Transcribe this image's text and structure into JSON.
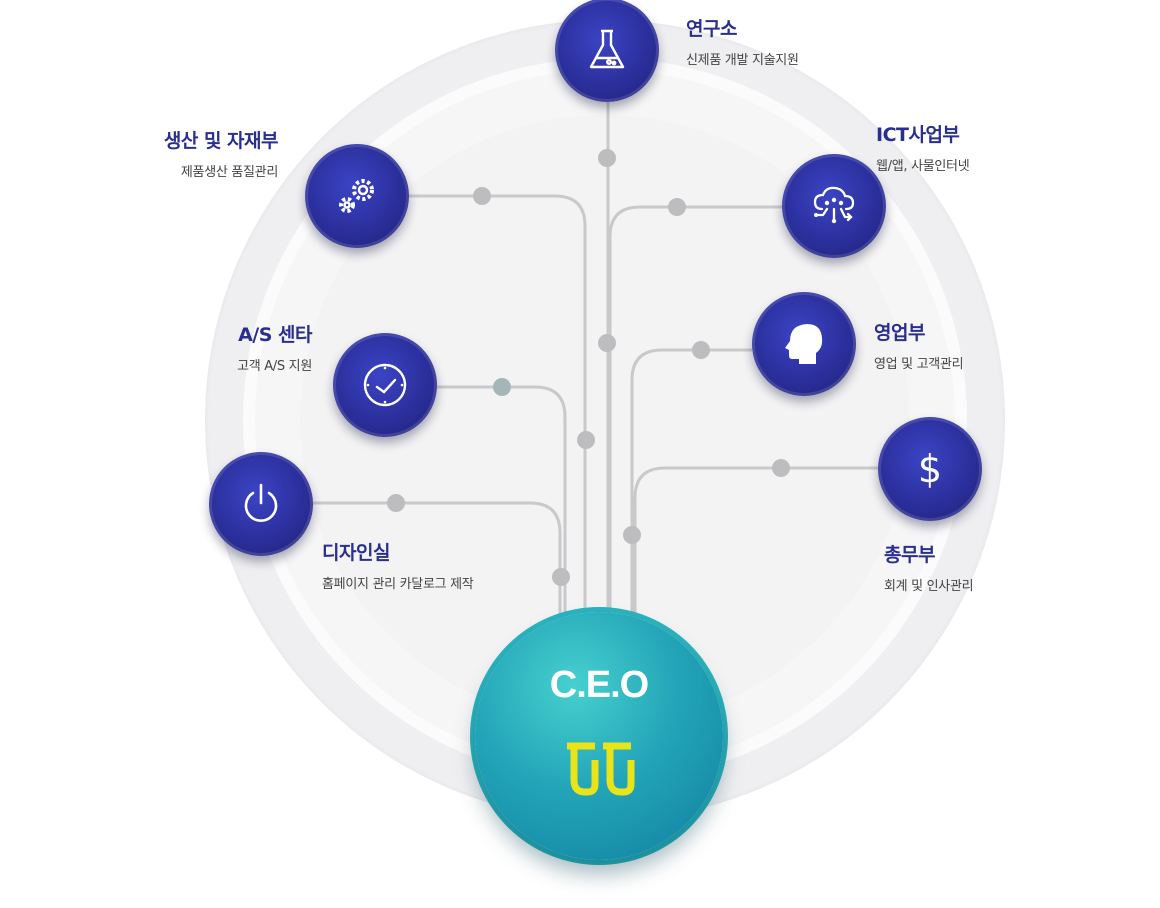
{
  "colors": {
    "node": "#2b2f9c",
    "ceo": "#1a9ab3",
    "line": "#c6c6c8",
    "dot": "#bdbdbf",
    "title": "#2a2f8f",
    "logo": "#e9e41a"
  },
  "ceo": {
    "title": "C.E.O",
    "logo_icon": "company-logo"
  },
  "departments": [
    {
      "title": "연구소",
      "sub": "신제품 개발 지술지원",
      "icon": "flask-icon"
    },
    {
      "title": "생산 및 자재부",
      "sub": "제품생산 품질관리",
      "icon": "gears-icon"
    },
    {
      "title": "ICT사업부",
      "sub": "웹/앱, 사물인터넷",
      "icon": "cloud-network-icon"
    },
    {
      "title": "A/S 센타",
      "sub": "고객 A/S 지원",
      "icon": "clock-icon"
    },
    {
      "title": "영업부",
      "sub": "영업 및 고객관리",
      "icon": "head-icon"
    },
    {
      "title": "디자인실",
      "sub": "홈페이지 관리 카달로그 제작",
      "icon": "power-icon"
    },
    {
      "title": "총무부",
      "sub": "회계 및 인사관리",
      "icon": "dollar-icon"
    }
  ]
}
